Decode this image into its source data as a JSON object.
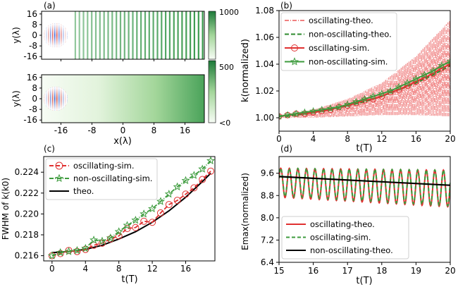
{
  "colors": {
    "osc_theo": "#f08080",
    "nonosc_theo": "#2e8b2e",
    "osc_sim": "#e03030",
    "nonosc_sim": "#3d9b3d",
    "theo_black": "#000000",
    "panel_d_red": "#e03030",
    "panel_d_green": "#3d9b3d",
    "colormap_low": "#f7fcf5",
    "colormap_high": "#1e7a3a"
  },
  "chart_data": [
    {
      "panel": "(a)",
      "type": "heatmap",
      "xlabel": "x(λ)",
      "ylabel_top": "y(λ)",
      "ylabel_bottom": "y(λ)",
      "xticks": [
        "-16",
        "-8",
        "0",
        "8",
        "16"
      ],
      "yticks": [
        "16",
        "8",
        "0",
        "-8",
        "-16"
      ],
      "xlim": [
        -21,
        21
      ],
      "ylim": [
        -18,
        18
      ],
      "colorbar_ticks_top": [
        "1000",
        "500"
      ],
      "colorbar_ticks_bottom": [
        "<0"
      ],
      "colorbar_range": [
        0,
        1000
      ]
    },
    {
      "panel": "(b)",
      "type": "line",
      "xlabel": "t(T)",
      "ylabel": "k(normalized)",
      "xlim": [
        0,
        20
      ],
      "ylim": [
        0.99,
        1.08
      ],
      "xticks": [
        "0",
        "4",
        "8",
        "12",
        "16",
        "20"
      ],
      "yticks": [
        "1.00",
        "1.02",
        "1.04",
        "1.06",
        "1.08"
      ],
      "legend_position": "upper-left",
      "series": [
        {
          "name": "oscillating-theo.",
          "style": "dashdot",
          "color": "osc_theo",
          "envelope": {
            "x": [
              0,
              4,
              8,
              12,
              16,
              20
            ],
            "upper": [
              1.002,
              1.006,
              1.014,
              1.026,
              1.046,
              1.073
            ],
            "lower": [
              1.0,
              1.0,
              1.001,
              1.002,
              1.002,
              1.001
            ]
          }
        },
        {
          "name": "non-oscillating-theo.",
          "style": "dashed",
          "color": "nonosc_theo",
          "x": [
            0,
            2,
            4,
            6,
            8,
            10,
            12,
            14,
            16,
            18,
            20
          ],
          "values": [
            1.001,
            1.002,
            1.004,
            1.006,
            1.009,
            1.012,
            1.016,
            1.021,
            1.026,
            1.032,
            1.039
          ]
        },
        {
          "name": "oscillating-sim.",
          "style": "solid-circle",
          "color": "osc_sim",
          "x": [
            0,
            1,
            2,
            3,
            4,
            5,
            6,
            7,
            8,
            9,
            10,
            11,
            12,
            13,
            14,
            15,
            16,
            17,
            18,
            19,
            20
          ],
          "values": [
            1.001,
            1.002,
            1.003,
            1.003,
            1.004,
            1.005,
            1.006,
            1.008,
            1.009,
            1.011,
            1.013,
            1.014,
            1.016,
            1.019,
            1.021,
            1.024,
            1.027,
            1.03,
            1.033,
            1.037,
            1.04
          ]
        },
        {
          "name": "non-oscillating-sim.",
          "style": "solid-star",
          "color": "nonosc_sim",
          "x": [
            0,
            1,
            2,
            3,
            4,
            5,
            6,
            7,
            8,
            9,
            10,
            11,
            12,
            13,
            14,
            15,
            16,
            17,
            18,
            19,
            20
          ],
          "values": [
            1.001,
            1.002,
            1.003,
            1.004,
            1.005,
            1.006,
            1.007,
            1.008,
            1.01,
            1.012,
            1.014,
            1.016,
            1.018,
            1.02,
            1.023,
            1.026,
            1.029,
            1.032,
            1.035,
            1.039,
            1.042
          ]
        }
      ]
    },
    {
      "panel": "(c)",
      "type": "line",
      "xlabel": "t(T)",
      "ylabel": "FWHM of k(k0)",
      "xlim": [
        -1,
        19.5
      ],
      "ylim": [
        0.2155,
        0.2255
      ],
      "xticks": [
        "0",
        "4",
        "8",
        "12",
        "16"
      ],
      "yticks": [
        "0.216",
        "0.218",
        "0.220",
        "0.222",
        "0.224"
      ],
      "legend_position": "upper-left",
      "series": [
        {
          "name": "oscillating-sim.",
          "style": "dashed-circle",
          "color": "osc_sim",
          "x": [
            0,
            1,
            2,
            3,
            4,
            5,
            6,
            7,
            8,
            9,
            10,
            11,
            12,
            13,
            14,
            15,
            16,
            17,
            18,
            19
          ],
          "values": [
            0.216,
            0.2162,
            0.2165,
            0.2164,
            0.2166,
            0.217,
            0.2172,
            0.2176,
            0.2179,
            0.2186,
            0.2187,
            0.2193,
            0.2192,
            0.2201,
            0.2209,
            0.2213,
            0.2219,
            0.2225,
            0.2233,
            0.2241
          ]
        },
        {
          "name": "non-oscillating-sim.",
          "style": "dashdot-star",
          "color": "nonosc_sim",
          "x": [
            0,
            1,
            2,
            3,
            4,
            5,
            6,
            7,
            8,
            9,
            10,
            11,
            12,
            13,
            14,
            15,
            16,
            17,
            18,
            19
          ],
          "values": [
            0.216,
            0.2163,
            0.2164,
            0.2165,
            0.2167,
            0.2175,
            0.2174,
            0.2177,
            0.2183,
            0.2189,
            0.2194,
            0.22,
            0.2205,
            0.2212,
            0.2219,
            0.2226,
            0.2232,
            0.2237,
            0.2243,
            0.2251
          ]
        },
        {
          "name": "theo.",
          "style": "solid",
          "color": "theo_black",
          "x": [
            0,
            2,
            4,
            6,
            8,
            10,
            12,
            14,
            16,
            18,
            19
          ],
          "values": [
            0.2163,
            0.2164,
            0.2166,
            0.217,
            0.2176,
            0.2183,
            0.2192,
            0.2203,
            0.2216,
            0.2231,
            0.2239
          ]
        }
      ]
    },
    {
      "panel": "(d)",
      "type": "line",
      "xlabel": "t(T)",
      "ylabel": "Emax(normalized)",
      "xlim": [
        15,
        20
      ],
      "ylim": [
        6.4,
        10.2
      ],
      "xticks": [
        "15",
        "16",
        "17",
        "18",
        "19",
        "20"
      ],
      "yticks": [
        "6.4",
        "7.2",
        "8.0",
        "8.8",
        "9.6"
      ],
      "legend_position": "lower-left",
      "series": [
        {
          "name": "oscillating-theo.",
          "style": "solid",
          "color": "panel_d_red",
          "oscillation": {
            "periods_per_unit": 4,
            "mean": [
              9.26,
              9.05
            ],
            "amplitude": [
              0.52,
              0.66
            ]
          }
        },
        {
          "name": "oscillating-sim.",
          "style": "dashed",
          "color": "panel_d_green",
          "oscillation": {
            "periods_per_unit": 4,
            "mean": [
              9.28,
              9.07
            ],
            "amplitude": [
              0.5,
              0.64
            ]
          }
        },
        {
          "name": "non-oscillating-theo.",
          "style": "solid",
          "color": "theo_black",
          "x": [
            15,
            20
          ],
          "values": [
            9.48,
            9.17
          ]
        }
      ]
    }
  ]
}
